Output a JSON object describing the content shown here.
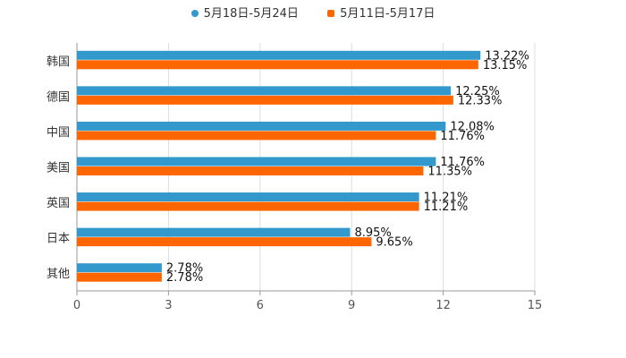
{
  "chart_data": {
    "type": "bar",
    "orientation": "horizontal",
    "categories": [
      "韩国",
      "德国",
      "中国",
      "美国",
      "英国",
      "日本",
      "其他"
    ],
    "series": [
      {
        "name": "5月18日-5月24日",
        "color": "#3399cc",
        "values": [
          13.22,
          12.25,
          12.08,
          11.76,
          11.21,
          8.95,
          2.78
        ],
        "labels": [
          "13.22%",
          "12.25%",
          "12.08%",
          "11.76%",
          "11.21%",
          "8.95%",
          "2.78%"
        ]
      },
      {
        "name": "5月11日-5月17日",
        "color": "#ff6600",
        "values": [
          13.15,
          12.33,
          11.76,
          11.35,
          11.21,
          9.65,
          2.78
        ],
        "labels": [
          "13.15%",
          "12.33%",
          "11.76%",
          "11.35%",
          "11.21%",
          "9.65%",
          "2.78%"
        ]
      }
    ],
    "xlim": [
      0,
      15
    ],
    "xticks": [
      0,
      3,
      6,
      9,
      12,
      15
    ],
    "xtick_labels": [
      "0",
      "3",
      "6",
      "9",
      "12",
      "15"
    ],
    "grid": true,
    "legend_position": "top-center"
  }
}
